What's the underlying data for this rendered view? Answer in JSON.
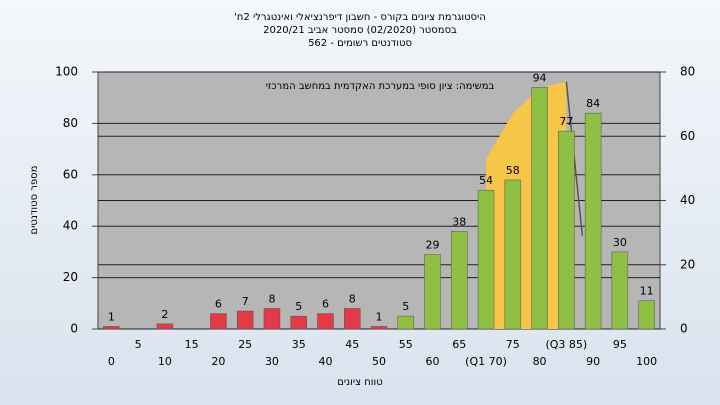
{
  "chart_data": {
    "type": "bar",
    "title": [
      "'היסטוגרמת ציונים בקורס - חשבון דיפרנציאלי ואינטגרלי 2ח",
      "בסמסטר  (02/2020)  סמסטר אביב 2020/21",
      "סטודנטים רשומים - 562"
    ],
    "annotation": "במשימה: ציון סופי במערכת האקדמית במחשב המרכזי",
    "xlabel": "טווח ציונים",
    "ylabel": "מספר סטודנטים",
    "categories": [
      "0",
      "5",
      "10",
      "15",
      "20",
      "25",
      "30",
      "35",
      "40",
      "45",
      "50",
      "55",
      "60",
      "65",
      "(Q1 70)",
      "75",
      "80",
      "(Q3 85)",
      "90",
      "95",
      "100"
    ],
    "values": [
      1,
      null,
      2,
      null,
      6,
      7,
      8,
      5,
      6,
      8,
      1,
      5,
      29,
      38,
      54,
      58,
      94,
      77,
      84,
      30,
      11
    ],
    "colors": [
      "#e23a48",
      "#e23a48",
      "#e23a48",
      "#e23a48",
      "#e23a48",
      "#e23a48",
      "#e23a48",
      "#e23a48",
      "#e23a48",
      "#e23a48",
      "#e23a48",
      "#8fc043",
      "#8fc043",
      "#8fc043",
      "#8fc043",
      "#8fc043",
      "#8fc043",
      "#8fc043",
      "#8fc043",
      "#8fc043",
      "#8fc043"
    ],
    "ylim": [
      0,
      100
    ],
    "yticks": [
      0,
      20,
      40,
      60,
      80,
      100
    ],
    "y2lim": [
      0,
      80
    ],
    "y2ticks": [
      0,
      20,
      40,
      60,
      80
    ],
    "grid": true,
    "series": [
      {
        "type": "area",
        "axis": "y2",
        "color": "#f7c548",
        "x": [
          70,
          75,
          80,
          85
        ],
        "values": [
          53,
          67,
          75,
          77
        ]
      },
      {
        "type": "line",
        "axis": "y2",
        "color": "#555555",
        "x": [
          85,
          88
        ],
        "values": [
          77,
          29
        ]
      }
    ]
  }
}
